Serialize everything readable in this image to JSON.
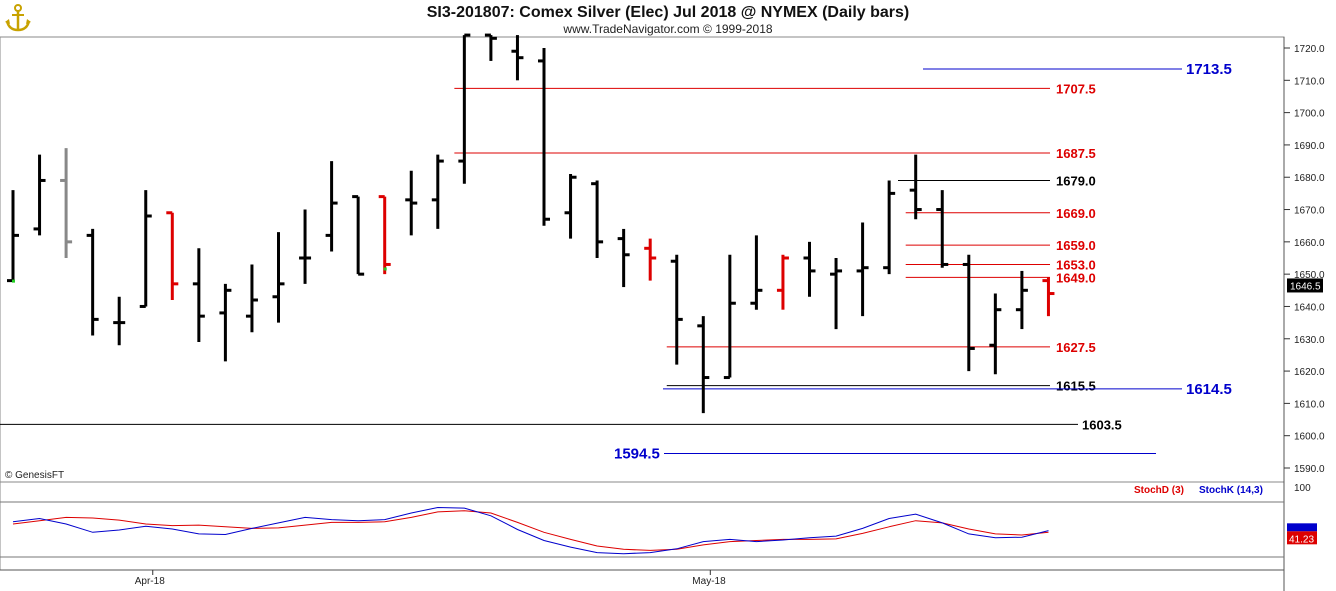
{
  "header": {
    "title": "SI3-201807:  Comex Silver (Elec) Jul 2018 @ NYMEX  (Daily bars)",
    "subtitle": "www.TradeNavigator.com © 1999-2018",
    "logo_icon": "anchor-logo-icon",
    "watermark": "© GenesisFT"
  },
  "colors": {
    "up_bar": "#000000",
    "down_bar": "#dd0000",
    "gray_bar": "#888888",
    "red_level": "#dd0000",
    "black_level": "#000000",
    "blue_level": "#0000cc",
    "stoch_d": "#dd0000",
    "stoch_k": "#0000cc"
  },
  "chart_data": [
    {
      "type": "ohlc",
      "title": "SI3-201807:  Comex Silver (Elec) Jul 2018 @ NYMEX  (Daily bars)",
      "ylim": [
        1584,
        1724
      ],
      "yticks": [
        1590.0,
        1600.0,
        1610.0,
        1620.0,
        1630.0,
        1640.0,
        1650.0,
        1660.0,
        1670.0,
        1680.0,
        1690.0,
        1700.0,
        1710.0,
        1720.0
      ],
      "ytick_labels": [
        "1590.0",
        "1600.0",
        "1610.0",
        "1620.0",
        "1630.0",
        "1640.0",
        "1650.0",
        "1660.0",
        "1670.0",
        "1680.0",
        "1690.0",
        "1700.0",
        "1710.0",
        "1720.0"
      ],
      "x_labels": [
        {
          "label": "Apr-18",
          "index": 5
        },
        {
          "label": "May-18",
          "index": 26
        }
      ],
      "last_price": "1646.5",
      "bars": [
        {
          "o": 1648,
          "h": 1676,
          "l": 1648,
          "c": 1662,
          "col": "black"
        },
        {
          "o": 1664,
          "h": 1687,
          "l": 1662,
          "c": 1679,
          "col": "black"
        },
        {
          "o": 1679,
          "h": 1689,
          "l": 1655,
          "c": 1660,
          "col": "gray"
        },
        {
          "o": 1662,
          "h": 1664,
          "l": 1631,
          "c": 1636,
          "col": "black"
        },
        {
          "o": 1635,
          "h": 1643,
          "l": 1628,
          "c": 1635,
          "col": "black"
        },
        {
          "o": 1640,
          "h": 1676,
          "l": 1640,
          "c": 1668,
          "col": "black"
        },
        {
          "o": 1669,
          "h": 1669,
          "l": 1642,
          "c": 1647,
          "col": "red"
        },
        {
          "o": 1647,
          "h": 1658,
          "l": 1629,
          "c": 1637,
          "col": "black"
        },
        {
          "o": 1638,
          "h": 1647,
          "l": 1623,
          "c": 1645,
          "col": "black"
        },
        {
          "o": 1637,
          "h": 1653,
          "l": 1632,
          "c": 1642,
          "col": "black"
        },
        {
          "o": 1643,
          "h": 1663,
          "l": 1635,
          "c": 1647,
          "col": "black"
        },
        {
          "o": 1655,
          "h": 1670,
          "l": 1647,
          "c": 1655,
          "col": "black"
        },
        {
          "o": 1662,
          "h": 1685,
          "l": 1657,
          "c": 1672,
          "col": "black"
        },
        {
          "o": 1674,
          "h": 1674,
          "l": 1650,
          "c": 1650,
          "col": "black"
        },
        {
          "o": 1674,
          "h": 1674,
          "l": 1650,
          "c": 1653,
          "col": "red"
        },
        {
          "o": 1673,
          "h": 1682,
          "l": 1662,
          "c": 1672,
          "col": "black"
        },
        {
          "o": 1673,
          "h": 1687,
          "l": 1664,
          "c": 1685,
          "col": "black"
        },
        {
          "o": 1685,
          "h": 1724,
          "l": 1678,
          "c": 1724,
          "col": "black"
        },
        {
          "o": 1724,
          "h": 1724,
          "l": 1716,
          "c": 1723,
          "col": "black"
        },
        {
          "o": 1719,
          "h": 1724,
          "l": 1710,
          "c": 1717,
          "col": "black"
        },
        {
          "o": 1716,
          "h": 1720,
          "l": 1665,
          "c": 1667,
          "col": "black"
        },
        {
          "o": 1669,
          "h": 1681,
          "l": 1661,
          "c": 1680,
          "col": "black"
        },
        {
          "o": 1678,
          "h": 1679,
          "l": 1655,
          "c": 1660,
          "col": "black"
        },
        {
          "o": 1661,
          "h": 1664,
          "l": 1646,
          "c": 1656,
          "col": "black"
        },
        {
          "o": 1658,
          "h": 1661,
          "l": 1648,
          "c": 1655,
          "col": "red"
        },
        {
          "o": 1654,
          "h": 1656,
          "l": 1622,
          "c": 1636,
          "col": "black"
        },
        {
          "o": 1634,
          "h": 1637,
          "l": 1607,
          "c": 1618,
          "col": "black"
        },
        {
          "o": 1618,
          "h": 1656,
          "l": 1618,
          "c": 1641,
          "col": "black"
        },
        {
          "o": 1641,
          "h": 1662,
          "l": 1639,
          "c": 1645,
          "col": "black"
        },
        {
          "o": 1645,
          "h": 1656,
          "l": 1639,
          "c": 1655,
          "col": "red"
        },
        {
          "o": 1655,
          "h": 1660,
          "l": 1643,
          "c": 1651,
          "col": "black"
        },
        {
          "o": 1650,
          "h": 1655,
          "l": 1633,
          "c": 1651,
          "col": "black"
        },
        {
          "o": 1651,
          "h": 1666,
          "l": 1637,
          "c": 1652,
          "col": "black"
        },
        {
          "o": 1652,
          "h": 1679,
          "l": 1650,
          "c": 1675,
          "col": "black"
        },
        {
          "o": 1676,
          "h": 1687,
          "l": 1667,
          "c": 1670,
          "col": "black"
        },
        {
          "o": 1670,
          "h": 1676,
          "l": 1652,
          "c": 1653,
          "col": "black"
        },
        {
          "o": 1653,
          "h": 1656,
          "l": 1620,
          "c": 1627,
          "col": "black"
        },
        {
          "o": 1628,
          "h": 1644,
          "l": 1619,
          "c": 1639,
          "col": "black"
        },
        {
          "o": 1639,
          "h": 1651,
          "l": 1633,
          "c": 1645,
          "col": "black"
        },
        {
          "o": 1648,
          "h": 1649,
          "l": 1637,
          "c": 1644,
          "col": "red"
        }
      ],
      "levels": [
        {
          "value": 1713.5,
          "label": "1713.5",
          "color": "blue",
          "start_index": 33
        },
        {
          "value": 1707.5,
          "label": "1707.5",
          "color": "red",
          "start_index": 17
        },
        {
          "value": 1687.5,
          "label": "1687.5",
          "color": "red",
          "start_index": 17
        },
        {
          "value": 1679.0,
          "label": "1679.0",
          "color": "black",
          "start_index": 34
        },
        {
          "value": 1669.0,
          "label": "1669.0",
          "color": "red",
          "start_index": 34
        },
        {
          "value": 1659.0,
          "label": "1659.0",
          "color": "red",
          "start_index": 34
        },
        {
          "value": 1653.0,
          "label": "1653.0",
          "color": "red",
          "start_index": 34
        },
        {
          "value": 1649.0,
          "label": "1649.0",
          "color": "red",
          "start_index": 34
        },
        {
          "value": 1627.5,
          "label": "1627.5",
          "color": "red",
          "start_index": 25
        },
        {
          "value": 1615.5,
          "label": "1615.5",
          "color": "black",
          "start_index": 25
        },
        {
          "value": 1614.5,
          "label": "1614.5",
          "color": "blue",
          "start_index": 24
        },
        {
          "value": 1603.5,
          "label": "1603.5",
          "color": "black",
          "start_index": -1
        },
        {
          "value": 1594.5,
          "label": "1594.5",
          "color": "blue",
          "start_index": 24
        }
      ]
    },
    {
      "type": "line",
      "title": "",
      "ylim": [
        0,
        100
      ],
      "ytick_labels": [
        "100"
      ],
      "last_value_label": "41.23",
      "series": [
        {
          "name": "StochD (3)",
          "color": "red",
          "values": [
            60,
            66,
            72,
            71,
            67,
            60,
            57,
            58,
            55,
            52,
            53,
            58,
            63,
            63,
            64,
            72,
            82,
            84,
            80,
            63,
            45,
            32,
            20,
            14,
            12,
            14,
            22,
            28,
            30,
            32,
            32,
            33,
            43,
            55,
            66,
            62,
            51,
            42,
            40,
            45
          ]
        },
        {
          "name": "StochK (14,3)",
          "color": "blue",
          "values": [
            64,
            70,
            60,
            45,
            49,
            56,
            51,
            42,
            41,
            52,
            62,
            72,
            68,
            66,
            68,
            80,
            90,
            89,
            75,
            50,
            30,
            18,
            8,
            6,
            8,
            15,
            28,
            32,
            28,
            31,
            35,
            38,
            52,
            70,
            78,
            62,
            42,
            35,
            36,
            48
          ]
        }
      ]
    }
  ]
}
